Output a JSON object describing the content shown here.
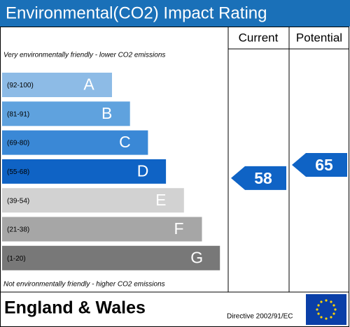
{
  "title": "Environmental(CO2) Impact Rating",
  "headers": {
    "current": "Current",
    "potential": "Potential"
  },
  "top_note": "Very environmentally friendly - lower CO2 emissions",
  "bottom_note": "Not environmentally friendly - higher CO2 emissions",
  "bands": [
    {
      "range": "(92-100)",
      "letter": "A",
      "color": "#8dbbe6"
    },
    {
      "range": "(81-91)",
      "letter": "B",
      "color": "#5fa2de"
    },
    {
      "range": "(69-80)",
      "letter": "C",
      "color": "#3a88d6"
    },
    {
      "range": "(55-68)",
      "letter": "D",
      "color": "#0f63c5"
    },
    {
      "range": "(39-54)",
      "letter": "E",
      "color": "#d2d2d2"
    },
    {
      "range": "(21-38)",
      "letter": "F",
      "color": "#a6a6a6"
    },
    {
      "range": "(1-20)",
      "letter": "G",
      "color": "#787878"
    }
  ],
  "current": 58,
  "potential": 65,
  "footer": {
    "region": "England & Wales",
    "directive": "Directive 2002/91/EC"
  }
}
